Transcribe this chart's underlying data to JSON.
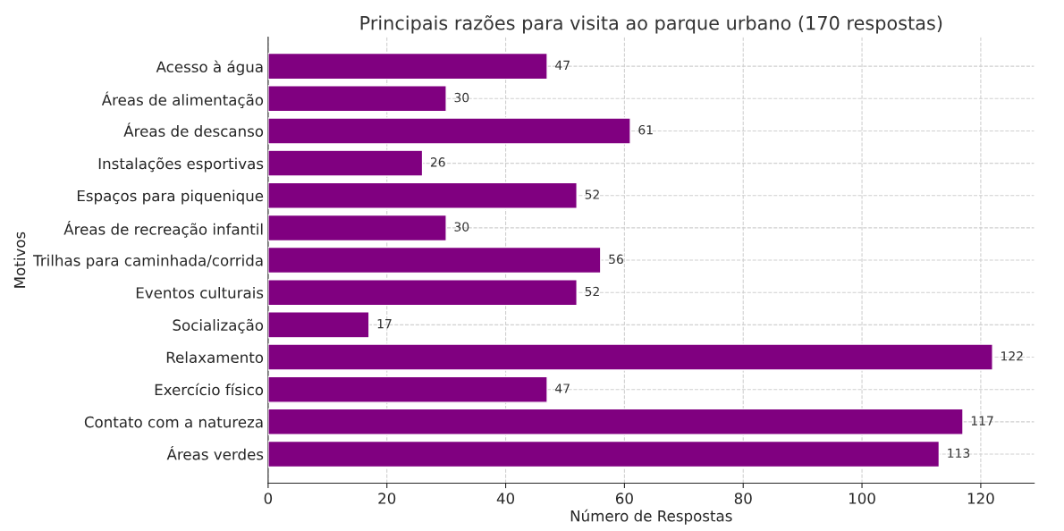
{
  "chart_data": {
    "type": "bar",
    "orientation": "horizontal",
    "title": "Principais razões para visita ao parque urbano (170 respostas)",
    "xlabel": "Número de Respostas",
    "ylabel": "Motivos",
    "categories": [
      "Acesso à água",
      "Áreas de alimentação",
      "Áreas de descanso",
      "Instalações esportivas",
      "Espaços para piquenique",
      "Áreas de recreação infantil",
      "Trilhas para caminhada/corrida",
      "Eventos culturais",
      "Socialização",
      "Relaxamento",
      "Exercício físico",
      "Contato com a natureza",
      "Áreas verdes"
    ],
    "values": [
      47,
      30,
      61,
      26,
      52,
      30,
      56,
      52,
      17,
      122,
      47,
      117,
      113
    ],
    "color": "#800080",
    "xlim": [
      0,
      129
    ],
    "xticks": [
      0,
      20,
      40,
      60,
      80,
      100,
      120
    ],
    "grid": true,
    "data_labels": true
  }
}
